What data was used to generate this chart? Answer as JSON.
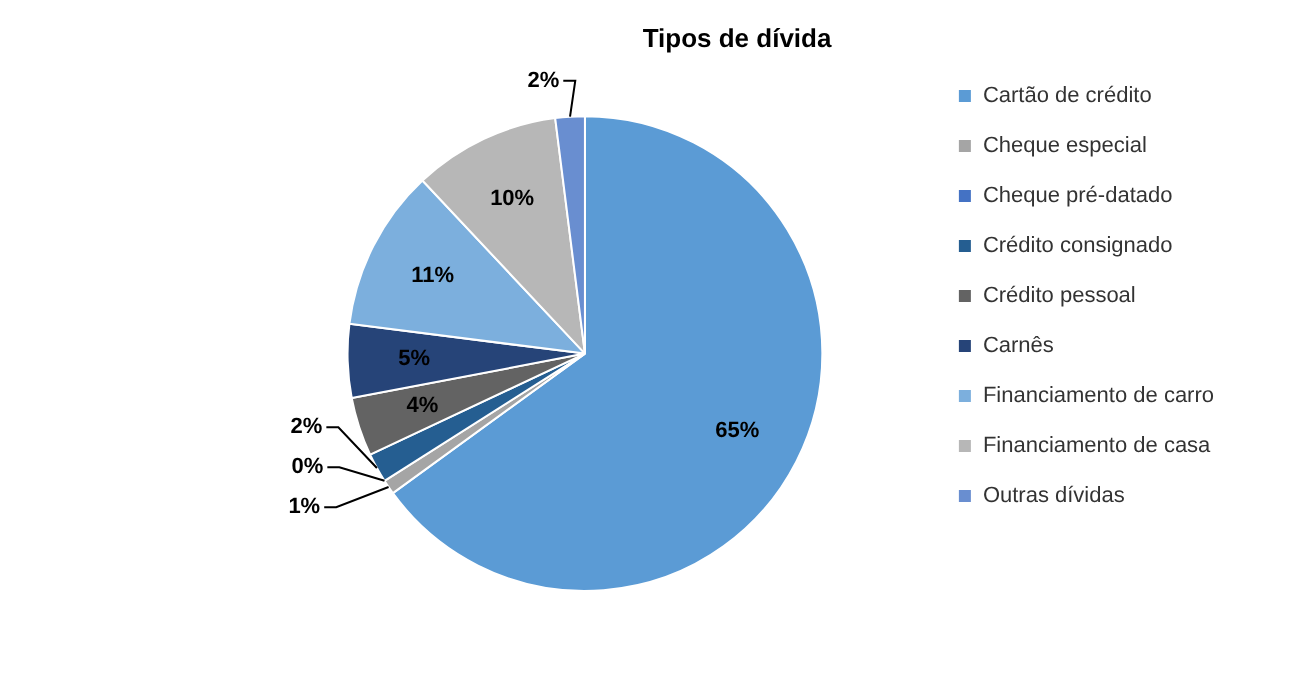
{
  "chart_data": {
    "type": "pie",
    "title": "Tipos de dívida",
    "categories": [
      "Cartão de crédito",
      "Cheque especial",
      "Cheque pré-datado",
      "Crédito consignado",
      "Crédito pessoal",
      "Carnês",
      "Financiamento de carro",
      "Financiamento de casa",
      "Outras dívidas"
    ],
    "values": [
      65,
      1,
      0,
      2,
      4,
      5,
      11,
      10,
      2
    ],
    "value_labels": [
      "65%",
      "1%",
      "0%",
      "2%",
      "4%",
      "5%",
      "11%",
      "10%",
      "2%"
    ],
    "colors": [
      "#5b9bd5",
      "#a5a5a5",
      "#4472c4",
      "#255e91",
      "#636363",
      "#264478",
      "#7cafdd",
      "#b7b7b7",
      "#698ed0"
    ],
    "legend": "right"
  }
}
